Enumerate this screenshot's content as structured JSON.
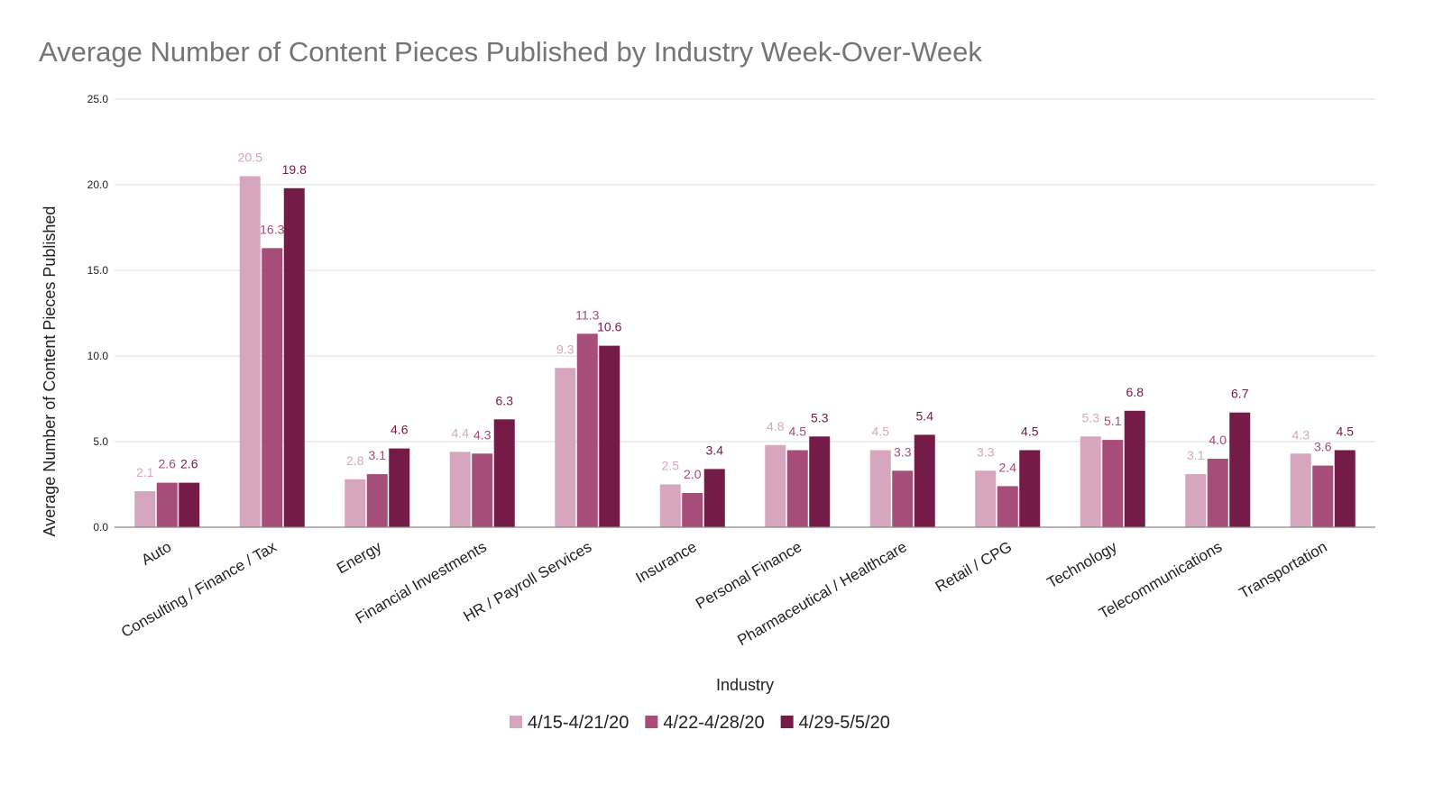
{
  "chart_data": {
    "type": "bar",
    "title": "Average Number of Content Pieces Published by Industry Week-Over-Week",
    "xlabel": "Industry",
    "ylabel": "Average Number of Content Pieces Published",
    "ylim": [
      0,
      25
    ],
    "yticks": [
      "0.0",
      "5.0",
      "10.0",
      "15.0",
      "20.0",
      "25.0"
    ],
    "grid": true,
    "legend_position": "bottom",
    "categories": [
      "Auto",
      "Consulting / Finance / Tax",
      "Energy",
      "Financial Investments",
      "HR / Payroll Services",
      "Insurance",
      "Personal Finance",
      "Pharmaceutical / Healthcare",
      "Retail / CPG",
      "Technology",
      "Telecommunications",
      "Transportation"
    ],
    "series": [
      {
        "name": "4/15-4/21/20",
        "color": "#d5a6bd",
        "values": [
          2.1,
          20.5,
          2.8,
          4.4,
          9.3,
          2.5,
          4.8,
          4.5,
          3.3,
          5.3,
          3.1,
          4.3
        ],
        "labels": [
          "2.1",
          "20.5",
          "2.8",
          "4.4",
          "9.3",
          "2.5",
          "4.8",
          "4.5",
          "3.3",
          "5.3",
          "3.1",
          "4.3"
        ]
      },
      {
        "name": "4/22-4/28/20",
        "color": "#a64d79",
        "values": [
          2.6,
          16.3,
          3.1,
          4.3,
          11.3,
          2.0,
          4.5,
          3.3,
          2.4,
          5.1,
          4.0,
          3.6
        ],
        "labels": [
          "2.6",
          "16.3",
          "3.1",
          "4.3",
          "11.3",
          "2.0",
          "4.5",
          "3.3",
          "2.4",
          "5.1",
          "4.0",
          "3.6"
        ]
      },
      {
        "name": "4/29-5/5/20",
        "color": "#741b47",
        "values": [
          2.6,
          19.8,
          4.6,
          6.3,
          10.6,
          3.4,
          5.3,
          5.4,
          4.5,
          6.8,
          6.7,
          4.5
        ],
        "labels": [
          "2.6",
          "19.8",
          "4.6",
          "6.3",
          "10.6",
          "3.4",
          "5.3",
          "5.4",
          "4.5",
          "6.8",
          "6.7",
          "4.5"
        ]
      }
    ]
  }
}
